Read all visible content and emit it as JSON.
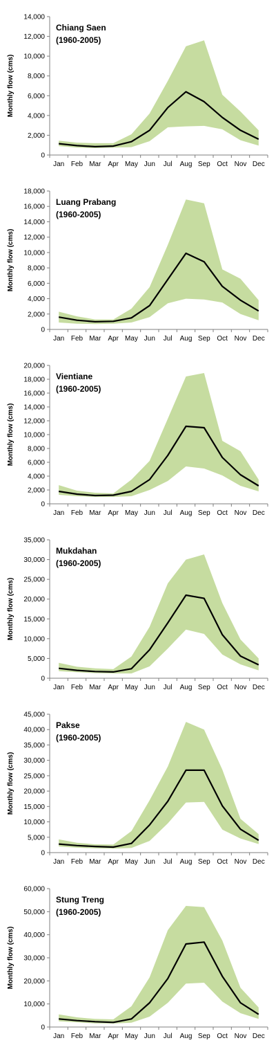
{
  "chart_data": [
    {
      "type": "area",
      "title_line1": "Chiang Saen",
      "title_line2": "(1960-2005)",
      "ylabel": "Monthly flow (cms)",
      "categories": [
        "Jan",
        "Feb",
        "Mar",
        "Apr",
        "May",
        "Jun",
        "Jul",
        "Aug",
        "Sep",
        "Oct",
        "Nov",
        "Dec"
      ],
      "ylim": [
        0,
        14000
      ],
      "yticks": [
        0,
        2000,
        4000,
        6000,
        8000,
        10000,
        12000,
        14000
      ],
      "ytick_labels": [
        "0",
        "2,000",
        "4,000",
        "6,000",
        "8,000",
        "10,000",
        "12,000",
        "14,000"
      ],
      "series": [
        {
          "kind": "band",
          "lower": [
            900,
            750,
            700,
            750,
            800,
            1400,
            2800,
            2900,
            2950,
            2600,
            1500,
            950
          ],
          "upper": [
            1450,
            1250,
            1200,
            1200,
            2100,
            4200,
            7500,
            11000,
            11600,
            6100,
            4400,
            2500
          ]
        },
        {
          "kind": "line",
          "values": [
            1150,
            950,
            850,
            900,
            1350,
            2500,
            4800,
            6400,
            5400,
            3800,
            2500,
            1600
          ]
        }
      ],
      "band_color": "#c6dca0",
      "line_color": "#000000"
    },
    {
      "type": "area",
      "title_line1": "Luang Prabang",
      "title_line2": "(1960-2005)",
      "ylabel": "Monthly flow (cms)",
      "categories": [
        "Jan",
        "Feb",
        "Mar",
        "Apr",
        "May",
        "Jun",
        "Jul",
        "Aug",
        "Sep",
        "Oct",
        "Nov",
        "Dec"
      ],
      "ylim": [
        0,
        18000
      ],
      "yticks": [
        0,
        2000,
        4000,
        6000,
        8000,
        10000,
        12000,
        14000,
        16000,
        18000
      ],
      "ytick_labels": [
        "0",
        "2,000",
        "4,000",
        "6,000",
        "8,000",
        "10,000",
        "12,000",
        "14,000",
        "16,000",
        "18,000"
      ],
      "series": [
        {
          "kind": "band",
          "lower": [
            900,
            750,
            700,
            750,
            900,
            1600,
            3400,
            4000,
            3900,
            3500,
            2000,
            1200
          ],
          "upper": [
            2300,
            1700,
            1300,
            1300,
            2700,
            5500,
            11000,
            16900,
            16400,
            7800,
            6600,
            3800
          ]
        },
        {
          "kind": "line",
          "values": [
            1600,
            1200,
            1000,
            1050,
            1500,
            3100,
            6500,
            9900,
            8800,
            5600,
            3800,
            2400
          ]
        }
      ],
      "band_color": "#c6dca0",
      "line_color": "#000000"
    },
    {
      "type": "area",
      "title_line1": "Vientiane",
      "title_line2": "(1960-2005)",
      "ylabel": "Monthly flow (cms)",
      "categories": [
        "Jan",
        "Feb",
        "Mar",
        "Apr",
        "May",
        "Jun",
        "Jul",
        "Aug",
        "Sep",
        "Oct",
        "Nov",
        "Dec"
      ],
      "ylim": [
        0,
        20000
      ],
      "yticks": [
        0,
        2000,
        4000,
        6000,
        8000,
        10000,
        12000,
        14000,
        16000,
        18000,
        20000
      ],
      "ytick_labels": [
        "0",
        "2,000",
        "4,000",
        "6,000",
        "8,000",
        "10,000",
        "12,000",
        "14,000",
        "16,000",
        "18,000",
        "20,000"
      ],
      "series": [
        {
          "kind": "band",
          "lower": [
            1300,
            1100,
            1000,
            1000,
            1100,
            2000,
            3300,
            5400,
            5100,
            4100,
            2600,
            1800
          ],
          "upper": [
            2700,
            1900,
            1600,
            1500,
            3500,
            6200,
            12300,
            18400,
            18900,
            9100,
            7600,
            3500
          ]
        },
        {
          "kind": "line",
          "values": [
            1800,
            1400,
            1200,
            1250,
            1800,
            3500,
            7000,
            11200,
            11000,
            6700,
            4200,
            2600
          ]
        }
      ],
      "band_color": "#c6dca0",
      "line_color": "#000000"
    },
    {
      "type": "area",
      "title_line1": "Mukdahan",
      "title_line2": "(1960-2005)",
      "ylabel": "Monthly flow (cms)",
      "categories": [
        "Jan",
        "Feb",
        "Mar",
        "Apr",
        "May",
        "Jun",
        "Jul",
        "Aug",
        "Sep",
        "Oct",
        "Nov",
        "Dec"
      ],
      "ylim": [
        0,
        35000
      ],
      "yticks": [
        0,
        5000,
        10000,
        15000,
        20000,
        25000,
        30000,
        35000
      ],
      "ytick_labels": [
        "0",
        "5,000",
        "10,000",
        "15,000",
        "20,000",
        "25,000",
        "30,000",
        "35,000"
      ],
      "series": [
        {
          "kind": "band",
          "lower": [
            1800,
            1500,
            1300,
            1200,
            1200,
            3000,
            7500,
            12300,
            11200,
            6000,
            3500,
            2000
          ],
          "upper": [
            3900,
            2900,
            2500,
            2300,
            5500,
            13000,
            24000,
            30000,
            31300,
            19000,
            9800,
            5000
          ]
        },
        {
          "kind": "line",
          "values": [
            2500,
            2000,
            1700,
            1600,
            2400,
            7200,
            14000,
            21000,
            20200,
            11000,
            5600,
            3400
          ]
        }
      ],
      "band_color": "#c6dca0",
      "line_color": "#000000"
    },
    {
      "type": "area",
      "title_line1": "Pakse",
      "title_line2": "(1960-2005)",
      "ylabel": "Monthly flow (cms)",
      "categories": [
        "Jan",
        "Feb",
        "Mar",
        "Apr",
        "May",
        "Jun",
        "Jul",
        "Aug",
        "Sep",
        "Oct",
        "Nov",
        "Dec"
      ],
      "ylim": [
        0,
        45000
      ],
      "yticks": [
        0,
        5000,
        10000,
        15000,
        20000,
        25000,
        30000,
        35000,
        40000,
        45000
      ],
      "ytick_labels": [
        "0",
        "5,000",
        "10,000",
        "15,000",
        "20,000",
        "25,000",
        "30,000",
        "35,000",
        "40,000",
        "45,000"
      ],
      "series": [
        {
          "kind": "band",
          "lower": [
            2000,
            1600,
            1400,
            1300,
            1500,
            3800,
            9500,
            16300,
            16500,
            7500,
            4600,
            2800
          ],
          "upper": [
            4300,
            3200,
            2700,
            2600,
            7000,
            17000,
            28000,
            42500,
            40000,
            27000,
            11000,
            6000
          ]
        },
        {
          "kind": "line",
          "values": [
            2800,
            2300,
            2000,
            1800,
            3000,
            9000,
            16700,
            26800,
            26800,
            15200,
            7600,
            4000
          ]
        }
      ],
      "band_color": "#c6dca0",
      "line_color": "#000000"
    },
    {
      "type": "area",
      "title_line1": "Stung Treng",
      "title_line2": "(1960-2005)",
      "ylabel": "Monthly flow (cms)",
      "categories": [
        "Jan",
        "Feb",
        "Mar",
        "Apr",
        "May",
        "Jun",
        "Jul",
        "Aug",
        "Sep",
        "Oct",
        "Nov",
        "Dec"
      ],
      "ylim": [
        0,
        60000
      ],
      "yticks": [
        0,
        10000,
        20000,
        30000,
        40000,
        50000,
        60000
      ],
      "ytick_labels": [
        "0",
        "10,000",
        "20,000",
        "30,000",
        "40,000",
        "50,000",
        "60,000"
      ],
      "series": [
        {
          "kind": "band",
          "lower": [
            2500,
            2000,
            1600,
            1500,
            1900,
            4500,
            10500,
            18800,
            19200,
            11000,
            6000,
            3500
          ],
          "upper": [
            5500,
            4200,
            3500,
            3300,
            9000,
            21500,
            42000,
            52500,
            52000,
            37500,
            17000,
            8500
          ]
        },
        {
          "kind": "line",
          "values": [
            3500,
            2800,
            2300,
            2000,
            3500,
            10500,
            21000,
            36000,
            36800,
            22000,
            10500,
            5500
          ]
        }
      ],
      "band_color": "#c6dca0",
      "line_color": "#000000"
    }
  ]
}
